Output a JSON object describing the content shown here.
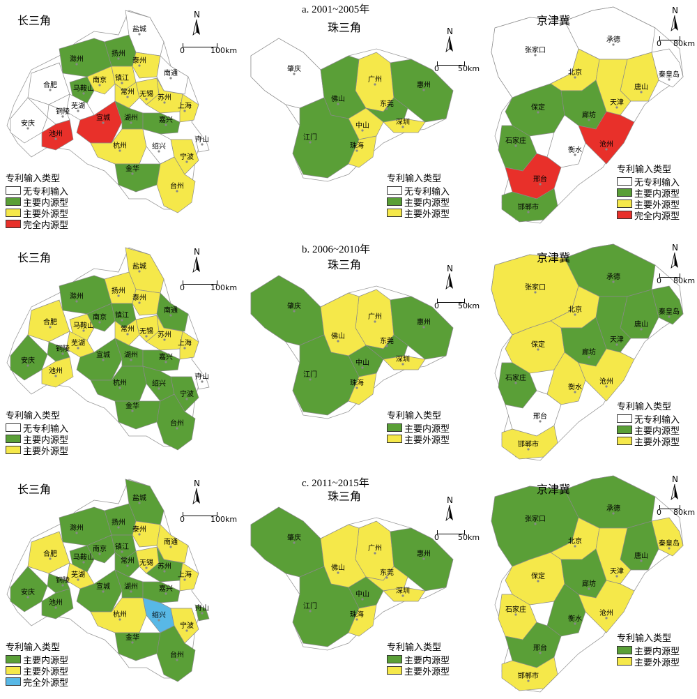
{
  "periods": [
    "a. 2001~2005年",
    "b. 2006~2010年",
    "c. 2011~2015年"
  ],
  "regions": {
    "yrd": "长三角",
    "prd": "珠三角",
    "bth": "京津冀"
  },
  "legend_title": "专利输入类型",
  "types": {
    "none": {
      "label": "无专利输入",
      "color": "#ffffff"
    },
    "internal": {
      "label": "主要内源型",
      "color": "#5a9f37"
    },
    "external": {
      "label": "主要外源型",
      "color": "#f5e84a"
    },
    "full_internal": {
      "label": "完全内源型",
      "color": "#e8302a"
    },
    "full_external": {
      "label": "完全外源型",
      "color": "#58b8e6"
    }
  },
  "scales": {
    "yrd": [
      "0",
      "100km"
    ],
    "prd": [
      "0",
      "50km"
    ],
    "bth": [
      "0",
      "80km"
    ]
  },
  "north": "N",
  "maps": {
    "yrd_a": {
      "legend": [
        "none",
        "internal",
        "external",
        "full_internal"
      ],
      "cities": [
        {
          "name": "盐城",
          "type": "none"
        },
        {
          "name": "扬州",
          "type": "internal"
        },
        {
          "name": "泰州",
          "type": "external"
        },
        {
          "name": "滁州",
          "type": "internal"
        },
        {
          "name": "南通",
          "type": "none"
        },
        {
          "name": "合肥",
          "type": "none"
        },
        {
          "name": "马鞍山",
          "type": "internal"
        },
        {
          "name": "南京",
          "type": "external"
        },
        {
          "name": "镇江",
          "type": "external"
        },
        {
          "name": "常州",
          "type": "external"
        },
        {
          "name": "无锡",
          "type": "external"
        },
        {
          "name": "苏州",
          "type": "external"
        },
        {
          "name": "芜湖",
          "type": "none"
        },
        {
          "name": "铜陵",
          "type": "none"
        },
        {
          "name": "上海",
          "type": "external"
        },
        {
          "name": "安庆",
          "type": "none"
        },
        {
          "name": "池州",
          "type": "full_internal"
        },
        {
          "name": "宣城",
          "type": "full_internal"
        },
        {
          "name": "湖州",
          "type": "internal"
        },
        {
          "name": "嘉兴",
          "type": "internal"
        },
        {
          "name": "杭州",
          "type": "external"
        },
        {
          "name": "绍兴",
          "type": "none"
        },
        {
          "name": "舟山",
          "type": "none"
        },
        {
          "name": "宁波",
          "type": "external"
        },
        {
          "name": "金华",
          "type": "internal"
        },
        {
          "name": "台州",
          "type": "external"
        }
      ]
    },
    "prd_a": {
      "legend": [
        "none",
        "internal",
        "external"
      ],
      "cities": [
        {
          "name": "肇庆",
          "type": "none"
        },
        {
          "name": "广州",
          "type": "external"
        },
        {
          "name": "惠州",
          "type": "internal"
        },
        {
          "name": "佛山",
          "type": "internal"
        },
        {
          "name": "东莞",
          "type": "internal"
        },
        {
          "name": "中山",
          "type": "external"
        },
        {
          "name": "深圳",
          "type": "external"
        },
        {
          "name": "江门",
          "type": "internal"
        },
        {
          "name": "珠海",
          "type": "external"
        }
      ]
    },
    "bth_a": {
      "legend": [
        "none",
        "internal",
        "external",
        "full_internal"
      ],
      "cities": [
        {
          "name": "承德",
          "type": "none"
        },
        {
          "name": "张家口",
          "type": "none"
        },
        {
          "name": "北京",
          "type": "external"
        },
        {
          "name": "秦皇岛",
          "type": "none"
        },
        {
          "name": "唐山",
          "type": "external"
        },
        {
          "name": "天津",
          "type": "external"
        },
        {
          "name": "保定",
          "type": "internal"
        },
        {
          "name": "廊坊",
          "type": "internal"
        },
        {
          "name": "石家庄",
          "type": "internal"
        },
        {
          "name": "衡水",
          "type": "none"
        },
        {
          "name": "沧州",
          "type": "full_internal"
        },
        {
          "name": "邢台",
          "type": "full_internal"
        },
        {
          "name": "邯郸市",
          "type": "internal"
        }
      ]
    },
    "yrd_b": {
      "legend": [
        "none",
        "internal",
        "external"
      ],
      "cities": [
        {
          "name": "盐城",
          "type": "external"
        },
        {
          "name": "扬州",
          "type": "external"
        },
        {
          "name": "泰州",
          "type": "external"
        },
        {
          "name": "滁州",
          "type": "internal"
        },
        {
          "name": "南通",
          "type": "internal"
        },
        {
          "name": "合肥",
          "type": "external"
        },
        {
          "name": "马鞍山",
          "type": "external"
        },
        {
          "name": "南京",
          "type": "internal"
        },
        {
          "name": "镇江",
          "type": "internal"
        },
        {
          "name": "常州",
          "type": "external"
        },
        {
          "name": "无锡",
          "type": "external"
        },
        {
          "name": "苏州",
          "type": "external"
        },
        {
          "name": "芜湖",
          "type": "external"
        },
        {
          "name": "铜陵",
          "type": "internal"
        },
        {
          "name": "上海",
          "type": "external"
        },
        {
          "name": "安庆",
          "type": "internal"
        },
        {
          "name": "池州",
          "type": "external"
        },
        {
          "name": "宣城",
          "type": "internal"
        },
        {
          "name": "湖州",
          "type": "internal"
        },
        {
          "name": "嘉兴",
          "type": "internal"
        },
        {
          "name": "杭州",
          "type": "internal"
        },
        {
          "name": "绍兴",
          "type": "internal"
        },
        {
          "name": "舟山",
          "type": "none"
        },
        {
          "name": "宁波",
          "type": "internal"
        },
        {
          "name": "金华",
          "type": "internal"
        },
        {
          "name": "台州",
          "type": "internal"
        }
      ]
    },
    "prd_b": {
      "legend": [
        "internal",
        "external"
      ],
      "cities": [
        {
          "name": "肇庆",
          "type": "internal"
        },
        {
          "name": "广州",
          "type": "external"
        },
        {
          "name": "惠州",
          "type": "internal"
        },
        {
          "name": "佛山",
          "type": "external"
        },
        {
          "name": "东莞",
          "type": "internal"
        },
        {
          "name": "中山",
          "type": "internal"
        },
        {
          "name": "深圳",
          "type": "external"
        },
        {
          "name": "江门",
          "type": "internal"
        },
        {
          "name": "珠海",
          "type": "external"
        }
      ]
    },
    "bth_b": {
      "legend": [
        "none",
        "internal",
        "external"
      ],
      "cities": [
        {
          "name": "承德",
          "type": "internal"
        },
        {
          "name": "张家口",
          "type": "external"
        },
        {
          "name": "北京",
          "type": "external"
        },
        {
          "name": "秦皇岛",
          "type": "internal"
        },
        {
          "name": "唐山",
          "type": "internal"
        },
        {
          "name": "天津",
          "type": "internal"
        },
        {
          "name": "保定",
          "type": "external"
        },
        {
          "name": "廊坊",
          "type": "internal"
        },
        {
          "name": "石家庄",
          "type": "internal"
        },
        {
          "name": "衡水",
          "type": "external"
        },
        {
          "name": "沧州",
          "type": "external"
        },
        {
          "name": "邢台",
          "type": "none"
        },
        {
          "name": "邯郸市",
          "type": "external"
        }
      ]
    },
    "yrd_c": {
      "legend": [
        "internal",
        "external",
        "full_external"
      ],
      "cities": [
        {
          "name": "盐城",
          "type": "internal"
        },
        {
          "name": "扬州",
          "type": "internal"
        },
        {
          "name": "泰州",
          "type": "external"
        },
        {
          "name": "滁州",
          "type": "internal"
        },
        {
          "name": "南通",
          "type": "external"
        },
        {
          "name": "合肥",
          "type": "external"
        },
        {
          "name": "马鞍山",
          "type": "internal"
        },
        {
          "name": "南京",
          "type": "internal"
        },
        {
          "name": "镇江",
          "type": "internal"
        },
        {
          "name": "常州",
          "type": "internal"
        },
        {
          "name": "无锡",
          "type": "external"
        },
        {
          "name": "苏州",
          "type": "internal"
        },
        {
          "name": "芜湖",
          "type": "external"
        },
        {
          "name": "铜陵",
          "type": "internal"
        },
        {
          "name": "上海",
          "type": "external"
        },
        {
          "name": "安庆",
          "type": "internal"
        },
        {
          "name": "池州",
          "type": "internal"
        },
        {
          "name": "宣城",
          "type": "internal"
        },
        {
          "name": "湖州",
          "type": "internal"
        },
        {
          "name": "嘉兴",
          "type": "internal"
        },
        {
          "name": "杭州",
          "type": "external"
        },
        {
          "name": "绍兴",
          "type": "full_external"
        },
        {
          "name": "舟山",
          "type": "internal"
        },
        {
          "name": "宁波",
          "type": "external"
        },
        {
          "name": "金华",
          "type": "internal"
        },
        {
          "name": "台州",
          "type": "internal"
        }
      ]
    },
    "prd_c": {
      "legend": [
        "internal",
        "external"
      ],
      "cities": [
        {
          "name": "肇庆",
          "type": "internal"
        },
        {
          "name": "广州",
          "type": "external"
        },
        {
          "name": "惠州",
          "type": "internal"
        },
        {
          "name": "佛山",
          "type": "external"
        },
        {
          "name": "东莞",
          "type": "external"
        },
        {
          "name": "中山",
          "type": "internal"
        },
        {
          "name": "深圳",
          "type": "external"
        },
        {
          "name": "江门",
          "type": "internal"
        },
        {
          "name": "珠海",
          "type": "external"
        }
      ]
    },
    "bth_c": {
      "legend": [
        "internal",
        "external"
      ],
      "cities": [
        {
          "name": "承德",
          "type": "internal"
        },
        {
          "name": "张家口",
          "type": "internal"
        },
        {
          "name": "北京",
          "type": "external"
        },
        {
          "name": "秦皇岛",
          "type": "external"
        },
        {
          "name": "唐山",
          "type": "internal"
        },
        {
          "name": "天津",
          "type": "external"
        },
        {
          "name": "保定",
          "type": "external"
        },
        {
          "name": "廊坊",
          "type": "internal"
        },
        {
          "name": "石家庄",
          "type": "external"
        },
        {
          "name": "衡水",
          "type": "internal"
        },
        {
          "name": "沧州",
          "type": "external"
        },
        {
          "name": "邢台",
          "type": "internal"
        },
        {
          "name": "邯郸市",
          "type": "external"
        }
      ]
    }
  }
}
